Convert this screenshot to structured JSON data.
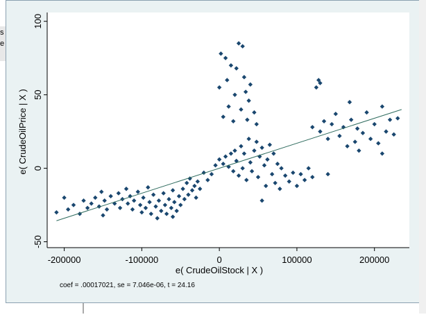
{
  "window": {
    "fragments": [
      "s",
      "e"
    ]
  },
  "chart_data": {
    "type": "scatter",
    "xlabel": "e( CrudeOilStock | X )",
    "ylabel": "e( CrudeOilPrice | X )",
    "note": "coef = .00017021, se = 7.046e-06, t = 24.16",
    "xlim": [
      -222000,
      245000
    ],
    "ylim": [
      -54,
      106
    ],
    "xticks": [
      -200000,
      -100000,
      0,
      100000,
      200000
    ],
    "yticks": [
      -50,
      0,
      50,
      100
    ],
    "series": [
      {
        "color": "#1a476f",
        "x": [
          -210000,
          -195000,
          -188000,
          -180000,
          -175000,
          -170000,
          -165000,
          -160000,
          -155000,
          -152000,
          -148000,
          -145000,
          -140000,
          -135000,
          -130000,
          -128000,
          -125000,
          -120000,
          -118000,
          -115000,
          -112000,
          -110000,
          -105000,
          -102000,
          -100000,
          -98000,
          -95000,
          -92000,
          -90000,
          -88000,
          -85000,
          -82000,
          -80000,
          -78000,
          -75000,
          -72000,
          -70000,
          -68000,
          -65000,
          -62000,
          -60000,
          -58000,
          -55000,
          -52000,
          -50000,
          -47000,
          -45000,
          -42000,
          -40000,
          -38000,
          -35000,
          -32000,
          -30000,
          -28000,
          -25000,
          -20000,
          -10000,
          -5000,
          0,
          5000,
          8000,
          12000,
          15000,
          18000,
          0,
          2000,
          5000,
          8000,
          10000,
          12000,
          15000,
          18000,
          20000,
          22000,
          25000,
          28000,
          30000,
          32000,
          34000,
          36000,
          38000,
          40000,
          45000,
          48000,
          20000,
          22000,
          25000,
          28000,
          30000,
          32000,
          35000,
          38000,
          40000,
          42000,
          45000,
          48000,
          50000,
          52000,
          55000,
          58000,
          60000,
          62000,
          65000,
          68000,
          70000,
          72000,
          75000,
          78000,
          80000,
          85000,
          90000,
          95000,
          100000,
          105000,
          110000,
          115000,
          120000,
          125000,
          128000,
          130000,
          120000,
          130000,
          135000,
          140000,
          145000,
          150000,
          155000,
          160000,
          165000,
          168000,
          170000,
          175000,
          178000,
          180000,
          185000,
          190000,
          195000,
          200000,
          205000,
          210000,
          215000,
          220000,
          225000,
          230000,
          210000,
          -200000,
          -150000,
          -60000,
          -15000,
          55000,
          140000
        ],
        "values": [
          -30,
          -28,
          -25,
          -31,
          -22,
          -27,
          -24,
          -20,
          -26,
          -16,
          -22,
          -28,
          -19,
          -24,
          -17,
          -27,
          -21,
          -14,
          -24,
          -19,
          -28,
          -22,
          -16,
          -25,
          -30,
          -20,
          -27,
          -13,
          -23,
          -31,
          -18,
          -26,
          -34,
          -22,
          -29,
          -17,
          -25,
          -31,
          -21,
          -27,
          -15,
          -23,
          -29,
          -19,
          -25,
          -14,
          -21,
          -10,
          -18,
          -7,
          -15,
          -12,
          -20,
          -9,
          -14,
          -3,
          -4,
          2,
          6,
          3,
          8,
          1,
          10,
          -2,
          55,
          78,
          35,
          75,
          60,
          42,
          70,
          32,
          50,
          68,
          85,
          40,
          83,
          62,
          52,
          33,
          46,
          57,
          38,
          30,
          12,
          5,
          -5,
          15,
          0,
          10,
          -8,
          20,
          4,
          -2,
          12,
          18,
          -6,
          8,
          14,
          2,
          -12,
          6,
          16,
          -4,
          10,
          -10,
          3,
          -14,
          0,
          -5,
          -9,
          -3,
          -12,
          -4,
          -8,
          0,
          -6,
          55,
          60,
          58,
          28,
          25,
          32,
          20,
          30,
          37,
          22,
          28,
          15,
          45,
          33,
          18,
          27,
          12,
          24,
          38,
          20,
          30,
          17,
          42,
          25,
          33,
          23,
          34,
          10,
          -20,
          -32,
          -33,
          -8,
          -22,
          -4
        ]
      }
    ],
    "fit": {
      "color": "#2e6b5e",
      "x": [
        -210000,
        235000
      ],
      "values": [
        -35.7,
        40
      ]
    }
  }
}
